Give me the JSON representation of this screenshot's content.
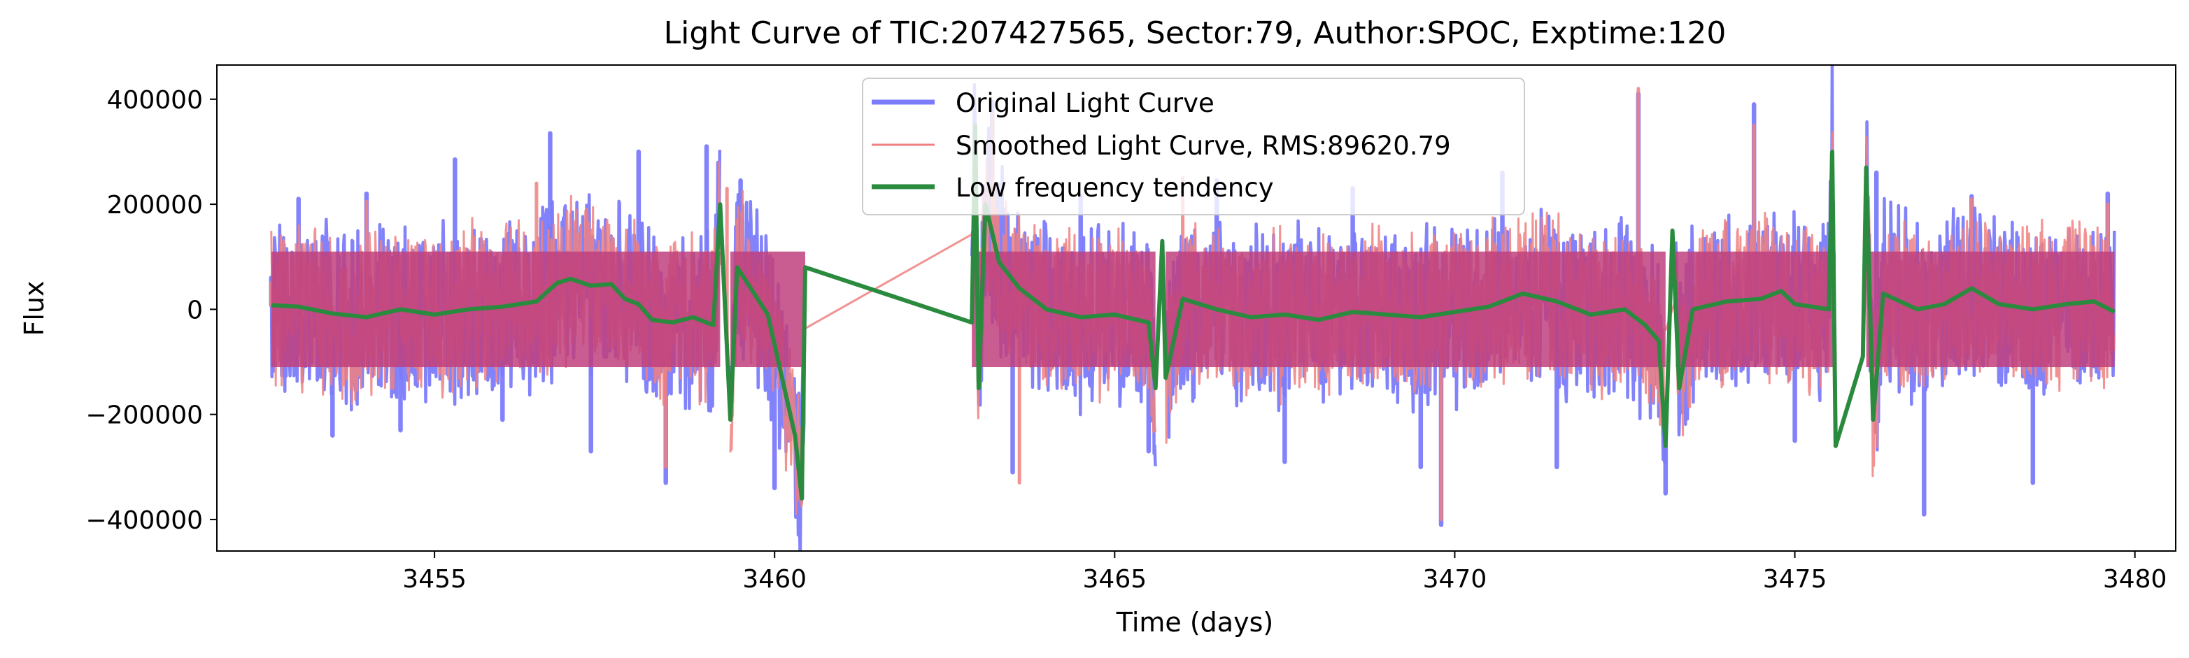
{
  "chart_data": {
    "type": "line",
    "title": "Light Curve of TIC:207427565, Sector:79, Author:SPOC, Exptime:120",
    "xlabel": "Time (days)",
    "ylabel": "Flux",
    "xlim": [
      3451.8,
      3480.6
    ],
    "ylim": [
      -460000,
      465000
    ],
    "x_ticks": [
      3455,
      3460,
      3465,
      3470,
      3475,
      3480
    ],
    "x_tick_labels": [
      "3455",
      "3460",
      "3465",
      "3470",
      "3475",
      "3480"
    ],
    "y_ticks": [
      -400000,
      -200000,
      0,
      200000,
      400000
    ],
    "y_tick_labels": [
      "−400000",
      "−200000",
      "0",
      "200000",
      "400000"
    ],
    "grid": false,
    "legend_position": "top-center",
    "segments": [
      [
        3452.6,
        3459.2
      ],
      [
        3459.35,
        3460.45
      ],
      [
        3462.9,
        3465.6
      ],
      [
        3465.75,
        3473.1
      ],
      [
        3473.25,
        3475.6
      ],
      [
        3476.05,
        3479.7
      ]
    ],
    "series": [
      {
        "name": "Original Light Curve",
        "color": "#7b7bfb",
        "style": "noisy-band",
        "envelope_typical": 200000,
        "points": [
          [
            3452.6,
            60000
          ],
          [
            3453.0,
            210000
          ],
          [
            3453.5,
            -240000
          ],
          [
            3454.0,
            220000
          ],
          [
            3454.5,
            -230000
          ],
          [
            3455.3,
            285000
          ],
          [
            3456.0,
            -210000
          ],
          [
            3456.7,
            335000
          ],
          [
            3457.3,
            -270000
          ],
          [
            3458.0,
            300000
          ],
          [
            3458.4,
            -330000
          ],
          [
            3459.0,
            310000
          ],
          [
            3459.5,
            245000
          ],
          [
            3460.0,
            -340000
          ],
          [
            3460.4,
            -310000
          ],
          [
            3463.2,
            395000
          ],
          [
            3463.5,
            -310000
          ],
          [
            3464.5,
            215000
          ],
          [
            3465.5,
            -270000
          ],
          [
            3466.5,
            245000
          ],
          [
            3467.5,
            -290000
          ],
          [
            3468.5,
            230000
          ],
          [
            3469.5,
            -300000
          ],
          [
            3469.8,
            -410000
          ],
          [
            3470.7,
            260000
          ],
          [
            3471.5,
            -300000
          ],
          [
            3472.7,
            410000
          ],
          [
            3473.1,
            -350000
          ],
          [
            3474.4,
            390000
          ],
          [
            3475.0,
            -250000
          ],
          [
            3476.2,
            260000
          ],
          [
            3476.9,
            -390000
          ],
          [
            3477.6,
            215000
          ],
          [
            3478.5,
            -330000
          ],
          [
            3479.6,
            220000
          ]
        ]
      },
      {
        "name": "Smoothed Light Curve, RMS:89620.79",
        "color": "#f08080",
        "style": "noisy-band",
        "gap_bridges": [
          [
            3460.4,
            -40000,
            3463.0,
            150000
          ],
          [
            3473.1,
            -40000,
            3473.3,
            40000
          ]
        ],
        "points": [
          [
            3452.6,
            50000
          ],
          [
            3454.0,
            205000
          ],
          [
            3456.5,
            240000
          ],
          [
            3458.4,
            -300000
          ],
          [
            3459.3,
            230000
          ],
          [
            3460.3,
            -250000
          ],
          [
            3463.2,
            370000
          ],
          [
            3463.6,
            -330000
          ],
          [
            3466.0,
            250000
          ],
          [
            3469.8,
            -400000
          ],
          [
            3472.7,
            420000
          ],
          [
            3474.4,
            350000
          ],
          [
            3477.6,
            210000
          ],
          [
            3479.6,
            200000
          ]
        ]
      },
      {
        "name": "Low frequency tendency",
        "color": "#2a8a3e",
        "style": "line",
        "points": [
          [
            3452.6,
            8000
          ],
          [
            3453.0,
            5000
          ],
          [
            3453.5,
            -8000
          ],
          [
            3454.0,
            -15000
          ],
          [
            3454.5,
            0
          ],
          [
            3455.0,
            -10000
          ],
          [
            3455.5,
            0
          ],
          [
            3456.0,
            5000
          ],
          [
            3456.5,
            15000
          ],
          [
            3456.8,
            50000
          ],
          [
            3457.0,
            58000
          ],
          [
            3457.3,
            45000
          ],
          [
            3457.6,
            48000
          ],
          [
            3457.8,
            20000
          ],
          [
            3458.0,
            10000
          ],
          [
            3458.2,
            -20000
          ],
          [
            3458.5,
            -25000
          ],
          [
            3458.8,
            -15000
          ],
          [
            3459.1,
            -30000
          ],
          [
            3459.2,
            200000
          ],
          [
            3459.35,
            -210000
          ],
          [
            3459.45,
            80000
          ],
          [
            3459.9,
            -10000
          ],
          [
            3460.3,
            -240000
          ],
          [
            3460.4,
            -360000
          ],
          [
            3460.45,
            80000
          ],
          [
            3462.9,
            -25000
          ],
          [
            3462.95,
            350000
          ],
          [
            3463.0,
            -150000
          ],
          [
            3463.1,
            200000
          ],
          [
            3463.3,
            90000
          ],
          [
            3463.6,
            40000
          ],
          [
            3464.0,
            0
          ],
          [
            3464.5,
            -15000
          ],
          [
            3465.0,
            -10000
          ],
          [
            3465.5,
            -25000
          ],
          [
            3465.6,
            -150000
          ],
          [
            3465.7,
            130000
          ],
          [
            3465.75,
            -130000
          ],
          [
            3466.0,
            20000
          ],
          [
            3466.5,
            0
          ],
          [
            3467.0,
            -15000
          ],
          [
            3467.5,
            -10000
          ],
          [
            3468.0,
            -20000
          ],
          [
            3468.5,
            -5000
          ],
          [
            3469.0,
            -10000
          ],
          [
            3469.5,
            -15000
          ],
          [
            3470.0,
            -5000
          ],
          [
            3470.5,
            5000
          ],
          [
            3471.0,
            30000
          ],
          [
            3471.5,
            15000
          ],
          [
            3472.0,
            -10000
          ],
          [
            3472.5,
            0
          ],
          [
            3472.8,
            -30000
          ],
          [
            3473.0,
            -60000
          ],
          [
            3473.1,
            -260000
          ],
          [
            3473.2,
            150000
          ],
          [
            3473.3,
            -150000
          ],
          [
            3473.5,
            0
          ],
          [
            3474.0,
            15000
          ],
          [
            3474.5,
            20000
          ],
          [
            3474.8,
            35000
          ],
          [
            3475.0,
            10000
          ],
          [
            3475.5,
            0
          ],
          [
            3475.55,
            300000
          ],
          [
            3475.6,
            -260000
          ],
          [
            3476.0,
            -90000
          ],
          [
            3476.05,
            270000
          ],
          [
            3476.15,
            -210000
          ],
          [
            3476.3,
            30000
          ],
          [
            3476.8,
            0
          ],
          [
            3477.2,
            10000
          ],
          [
            3477.6,
            40000
          ],
          [
            3478.0,
            10000
          ],
          [
            3478.5,
            0
          ],
          [
            3479.0,
            10000
          ],
          [
            3479.4,
            15000
          ],
          [
            3479.7,
            -5000
          ]
        ]
      }
    ]
  }
}
